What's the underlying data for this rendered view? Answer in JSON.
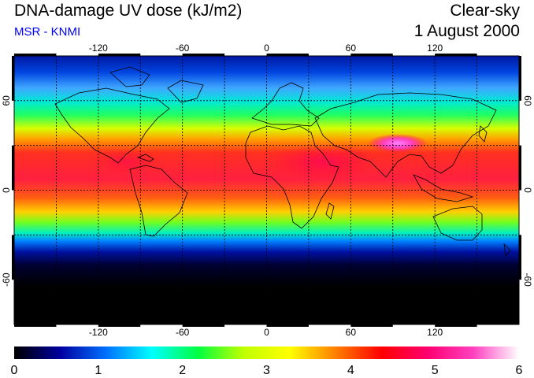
{
  "header": {
    "title": "DNA-damage UV dose (kJ/m2)",
    "subtitle": "MSR - KNMI",
    "condition": "Clear-sky",
    "date": "1 August 2000"
  },
  "map": {
    "lon_ticks": [
      "-120",
      "-60",
      "0",
      "60",
      "120"
    ],
    "lat_ticks": [
      "60",
      "0",
      "-60"
    ],
    "lon_values": [
      -120,
      -60,
      0,
      60,
      120
    ],
    "lat_values": [
      60,
      0,
      -60
    ]
  },
  "colorbar": {
    "min": 0,
    "max": 6,
    "tick_labels": [
      "0",
      "1",
      "2",
      "3",
      "4",
      "5",
      "6"
    ],
    "colors": [
      "#000000",
      "#0000a0",
      "#0070ff",
      "#00ffff",
      "#00ff40",
      "#c0ff00",
      "#ffff00",
      "#ff8000",
      "#ff0000",
      "#ff0070",
      "#ff40c0",
      "#ffffff"
    ]
  }
}
